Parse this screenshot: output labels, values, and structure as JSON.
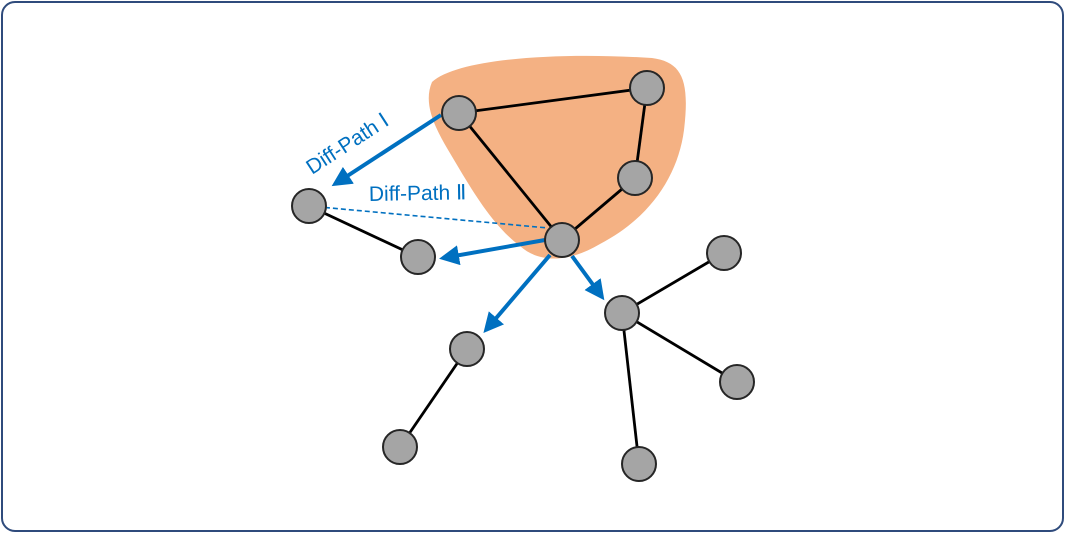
{
  "colors": {
    "border": "#2F4B7C",
    "blob": "#F4B183",
    "node_fill": "#A5A5A5",
    "node_stroke": "#262626",
    "edge": "#000000",
    "accent": "#0070C0"
  },
  "labels": {
    "path1": "Diff-Path Ⅰ",
    "path2": "Diff-Path Ⅱ"
  }
}
